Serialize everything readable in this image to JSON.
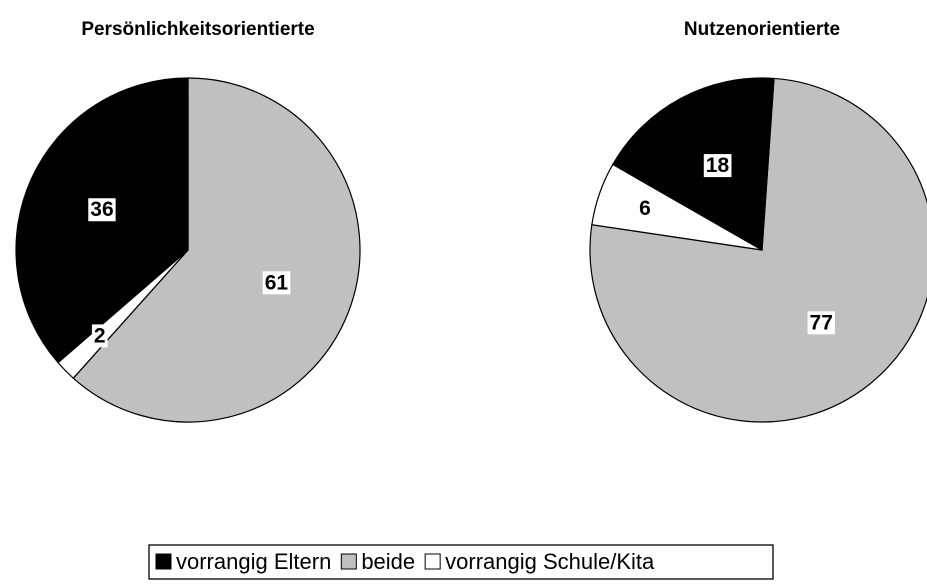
{
  "chart_data": [
    {
      "type": "pie",
      "title": "Persönlichkeitsorientierte",
      "values": [
        36,
        61,
        2
      ],
      "startangle": 0
    },
    {
      "type": "pie",
      "title": "Nutzenorientierte",
      "values": [
        18,
        77,
        6
      ],
      "startangle": 4
    }
  ],
  "legend": {
    "categories": [
      "vorrangig Eltern",
      "beide",
      "vorrangig Schule/Kita"
    ],
    "colors": [
      "#000000",
      "#c0c0c0",
      "#ffffff"
    ]
  }
}
